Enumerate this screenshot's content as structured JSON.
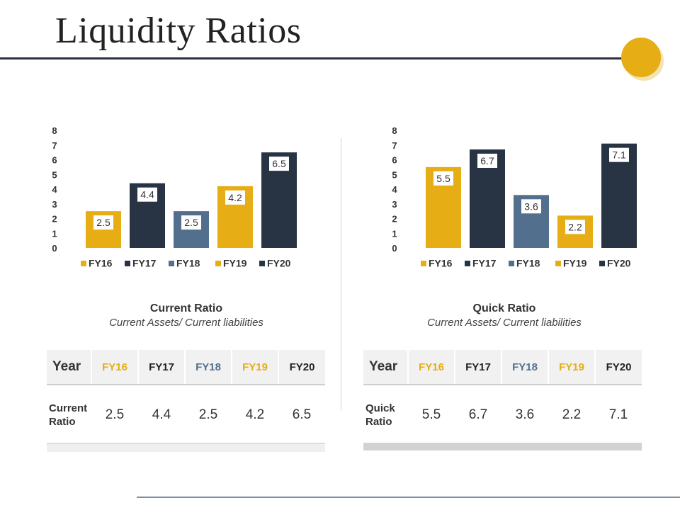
{
  "slide": {
    "title": "Liquidity Ratios"
  },
  "colors": {
    "gold": "#e6ad14",
    "navy": "#283444",
    "slate": "#52708e",
    "fy16_header": "#e6ad14",
    "fy18_header": "#52708e",
    "fy19_header": "#e6ad14",
    "dark_header": "#222222"
  },
  "chart_data": [
    {
      "type": "bar",
      "title": "Current Ratio",
      "subtitle": "Current Assets/ Current liabilities",
      "categories": [
        "FY16",
        "FY17",
        "FY18",
        "FY19",
        "FY20"
      ],
      "values": [
        2.5,
        4.4,
        2.5,
        4.2,
        6.5
      ],
      "labels": [
        "2.5",
        "4.4",
        "2.5",
        "4.2",
        "6.5"
      ],
      "bar_colors": [
        "#e6ad14",
        "#283444",
        "#52708e",
        "#e6ad14",
        "#283444"
      ],
      "yticks": [
        "0",
        "1",
        "2",
        "3",
        "4",
        "5",
        "6",
        "7",
        "8"
      ],
      "ylim": [
        0,
        8
      ],
      "grid": false,
      "legend": "bottom",
      "legend_entries": [
        "FY16",
        "FY17",
        "FY18",
        "FY19",
        "FY20"
      ],
      "xlabel": "",
      "ylabel": ""
    },
    {
      "type": "bar",
      "title": "Quick Ratio",
      "subtitle": "Current Assets/ Current liabilities",
      "categories": [
        "FY16",
        "FY17",
        "FY18",
        "FY19",
        "FY20"
      ],
      "values": [
        5.5,
        6.7,
        3.6,
        2.2,
        7.1
      ],
      "labels": [
        "5.5",
        "6.7",
        "3.6",
        "2.2",
        "7.1"
      ],
      "bar_colors": [
        "#e6ad14",
        "#283444",
        "#52708e",
        "#e6ad14",
        "#283444"
      ],
      "yticks": [
        "0",
        "1",
        "2",
        "3",
        "4",
        "5",
        "6",
        "7",
        "8"
      ],
      "ylim": [
        0,
        8
      ],
      "grid": false,
      "legend": "bottom",
      "legend_entries": [
        "FY16",
        "FY17",
        "FY18",
        "FY19",
        "FY20"
      ],
      "xlabel": "",
      "ylabel": ""
    }
  ],
  "tables": [
    {
      "header_label": "Year",
      "columns": [
        "FY16",
        "FY17",
        "FY18",
        "FY19",
        "FY20"
      ],
      "row_label_line1": "Current",
      "row_label_line2": "Ratio",
      "values": [
        "2.5",
        "4.4",
        "2.5",
        "4.2",
        "6.5"
      ]
    },
    {
      "header_label": "Year",
      "columns": [
        "FY16",
        "FY17",
        "FY18",
        "FY19",
        "FY20"
      ],
      "row_label_line1": "Quick",
      "row_label_line2": "Ratio",
      "values": [
        "5.5",
        "6.7",
        "3.6",
        "2.2",
        "7.1"
      ]
    }
  ]
}
